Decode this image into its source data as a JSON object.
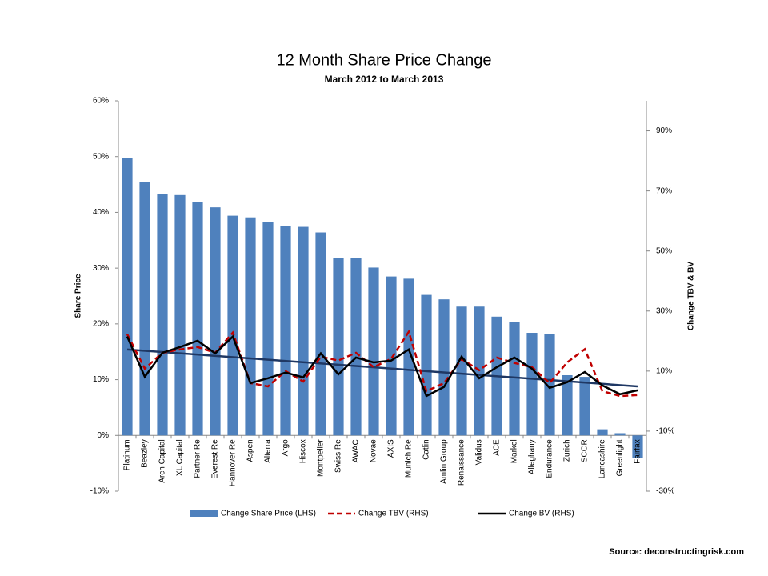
{
  "chart_data": {
    "type": "bar-line",
    "title": "12 Month Share Price Change",
    "subtitle": "March 2012 to March 2013",
    "y_label": "Share Price",
    "y2_label": "Change TBV  & BV",
    "source": "Source: deconstructingrisk.com",
    "categories": [
      "Platinum",
      "Beazley",
      "Arch Capital",
      "XL Capital",
      "Partner Re",
      "Everest Re",
      "Hannover Re",
      "Aspen",
      "Alterra",
      "Argo",
      "Hiscox",
      "Montpelier",
      "Swiss Re",
      "AWAC",
      "Novae",
      "AXIS",
      "Munich Re",
      "Catlin",
      "Amlin Group",
      "Renaissance",
      "Validus",
      "ACE",
      "Markel",
      "Alleghany",
      "Endurance",
      "Zurich",
      "SCOR",
      "Lancashire",
      "Greenlight",
      "Fairfax"
    ],
    "series": [
      {
        "name": "Change Share Price (LHS)",
        "type": "bar",
        "color": "#4f81bd",
        "values": [
          49.8,
          45.4,
          43.3,
          43.1,
          41.9,
          40.9,
          39.4,
          39.1,
          38.2,
          37.6,
          37.4,
          36.4,
          31.8,
          31.8,
          30.1,
          28.5,
          28.1,
          25.2,
          24.4,
          23.1,
          23.1,
          21.3,
          20.4,
          18.4,
          18.2,
          10.8,
          10.5,
          1.1,
          0.4,
          -4
        ]
      },
      {
        "name": "Change TBV (RHS)",
        "type": "line",
        "axis": "y2",
        "color": "#c00000",
        "dashed": true,
        "values": [
          22.3,
          10.8,
          16.1,
          17.2,
          18,
          16.1,
          22.8,
          6,
          4.9,
          10,
          6.5,
          14.8,
          13.5,
          16.1,
          11.3,
          14.1,
          23.1,
          3.3,
          6,
          14,
          10.3,
          14.5,
          12.7,
          11.3,
          6,
          12.9,
          17.3,
          3.3,
          1.7,
          2
        ]
      },
      {
        "name": "Change BV (RHS)",
        "type": "line",
        "axis": "y2",
        "color": "#000000",
        "dashed": false,
        "values": [
          21.5,
          8.1,
          16.1,
          18,
          20.1,
          15.9,
          21.5,
          6,
          7.6,
          9.5,
          7.9,
          15.9,
          8.9,
          14.5,
          12.9,
          13.5,
          17.2,
          1.7,
          4.7,
          14.8,
          7.6,
          11.3,
          14.5,
          10.8,
          4.4,
          6.3,
          9.7,
          5.2,
          2.3,
          3.6
        ]
      }
    ],
    "trendline": {
      "axis": "y2",
      "color": "#1f3864",
      "values": [
        17.2,
        4.9
      ]
    },
    "ylim": [
      -10,
      60
    ],
    "yticks": [
      {
        "value": -10,
        "label": "-10%"
      },
      {
        "value": 0,
        "label": "0%"
      },
      {
        "value": 10,
        "label": "10%"
      },
      {
        "value": 20,
        "label": "20%"
      },
      {
        "value": 30,
        "label": "30%"
      },
      {
        "value": 40,
        "label": "40%"
      },
      {
        "value": 50,
        "label": "50%"
      },
      {
        "value": 60,
        "label": "60%"
      }
    ],
    "y2lim": [
      -30,
      100
    ],
    "y2ticks": [
      {
        "value": -30,
        "label": "-30%"
      },
      {
        "value": -10,
        "label": "-10%"
      },
      {
        "value": 10,
        "label": "10%"
      },
      {
        "value": 30,
        "label": "30%"
      },
      {
        "value": 50,
        "label": "50%"
      },
      {
        "value": 70,
        "label": "70%"
      },
      {
        "value": 90,
        "label": "90%"
      }
    ],
    "grid": false,
    "legend": "bottom"
  }
}
